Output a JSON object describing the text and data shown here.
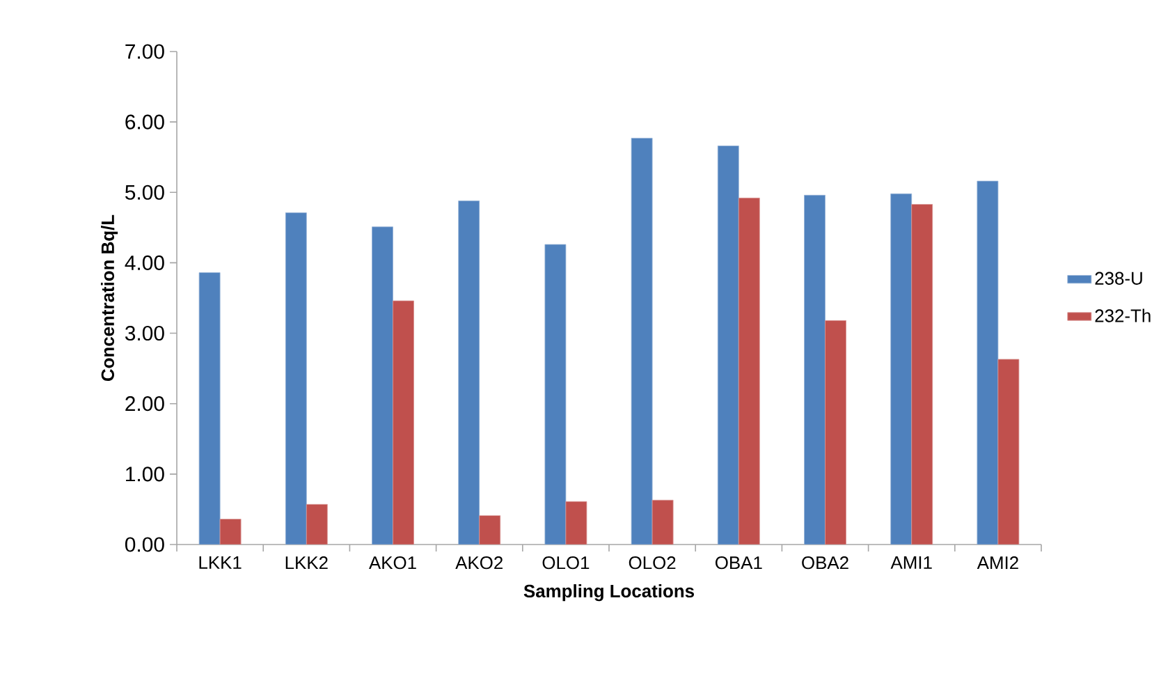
{
  "chart_data": {
    "type": "bar",
    "xlabel": "Sampling Locations",
    "ylabel": "Concentration Bq/L",
    "categories": [
      "LKK1",
      "LKK2",
      "AKO1",
      "AKO2",
      "OLO1",
      "OLO2",
      "OBA1",
      "OBA2",
      "AMI1",
      "AMI2"
    ],
    "series": [
      {
        "name": "238-U",
        "color": "#4f81bd",
        "values": [
          3.86,
          4.71,
          4.51,
          4.88,
          4.26,
          5.77,
          5.66,
          4.96,
          4.98,
          5.16
        ]
      },
      {
        "name": "232-Th",
        "color": "#c0504d",
        "values": [
          0.36,
          0.57,
          3.46,
          0.41,
          0.61,
          0.63,
          4.92,
          3.18,
          4.83,
          2.63
        ]
      }
    ],
    "ylim": [
      0,
      7
    ],
    "yticks": [
      {
        "value": 0,
        "label": "0.00"
      },
      {
        "value": 1,
        "label": "1.00"
      },
      {
        "value": 2,
        "label": "2.00"
      },
      {
        "value": 3,
        "label": "3.00"
      },
      {
        "value": 4,
        "label": "4.00"
      },
      {
        "value": 5,
        "label": "5.00"
      },
      {
        "value": 6,
        "label": "6.00"
      },
      {
        "value": 7,
        "label": "7.00"
      }
    ],
    "legend": "right",
    "grid": false
  }
}
